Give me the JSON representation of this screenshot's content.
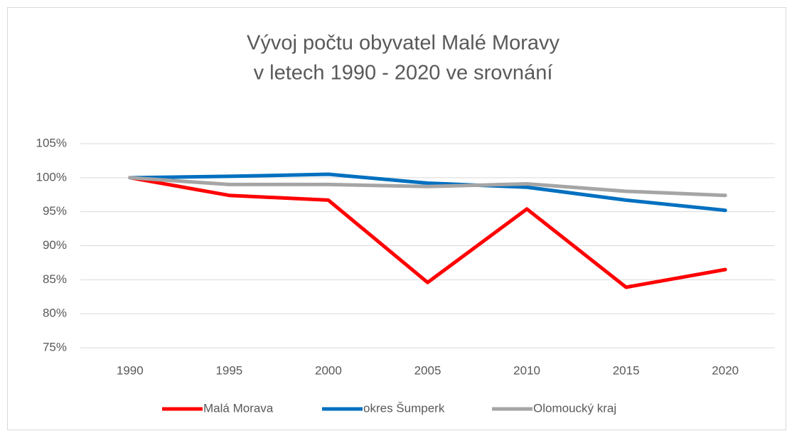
{
  "chart_data": {
    "type": "line",
    "title": [
      "Vývoj počtu obyvatel Malé Moravy",
      "v letech 1990 - 2020 ve srovnání"
    ],
    "categories": [
      "1990",
      "1995",
      "2000",
      "2005",
      "2010",
      "2015",
      "2020"
    ],
    "series": [
      {
        "name": "Malá Morava",
        "color": "#ff0000",
        "values": [
          100,
          97.4,
          96.7,
          84.6,
          95.4,
          83.9,
          86.5
        ]
      },
      {
        "name": "okres Šumperk",
        "color": "#0070c0",
        "values": [
          100,
          100.2,
          100.5,
          99.2,
          98.6,
          96.7,
          95.2
        ]
      },
      {
        "name": "Olomoucký kraj",
        "color": "#a5a5a5",
        "values": [
          100,
          99.0,
          99.0,
          98.7,
          99.1,
          98.0,
          97.4
        ]
      }
    ],
    "ylim": [
      75,
      105
    ],
    "yticks": [
      {
        "value": 75,
        "label": "75%"
      },
      {
        "value": 80,
        "label": "80%"
      },
      {
        "value": 85,
        "label": "85%"
      },
      {
        "value": 90,
        "label": "90%"
      },
      {
        "value": 95,
        "label": "95%"
      },
      {
        "value": 100,
        "label": "100%"
      },
      {
        "value": 105,
        "label": "105%"
      }
    ],
    "grid": true,
    "legend": "bottom"
  }
}
